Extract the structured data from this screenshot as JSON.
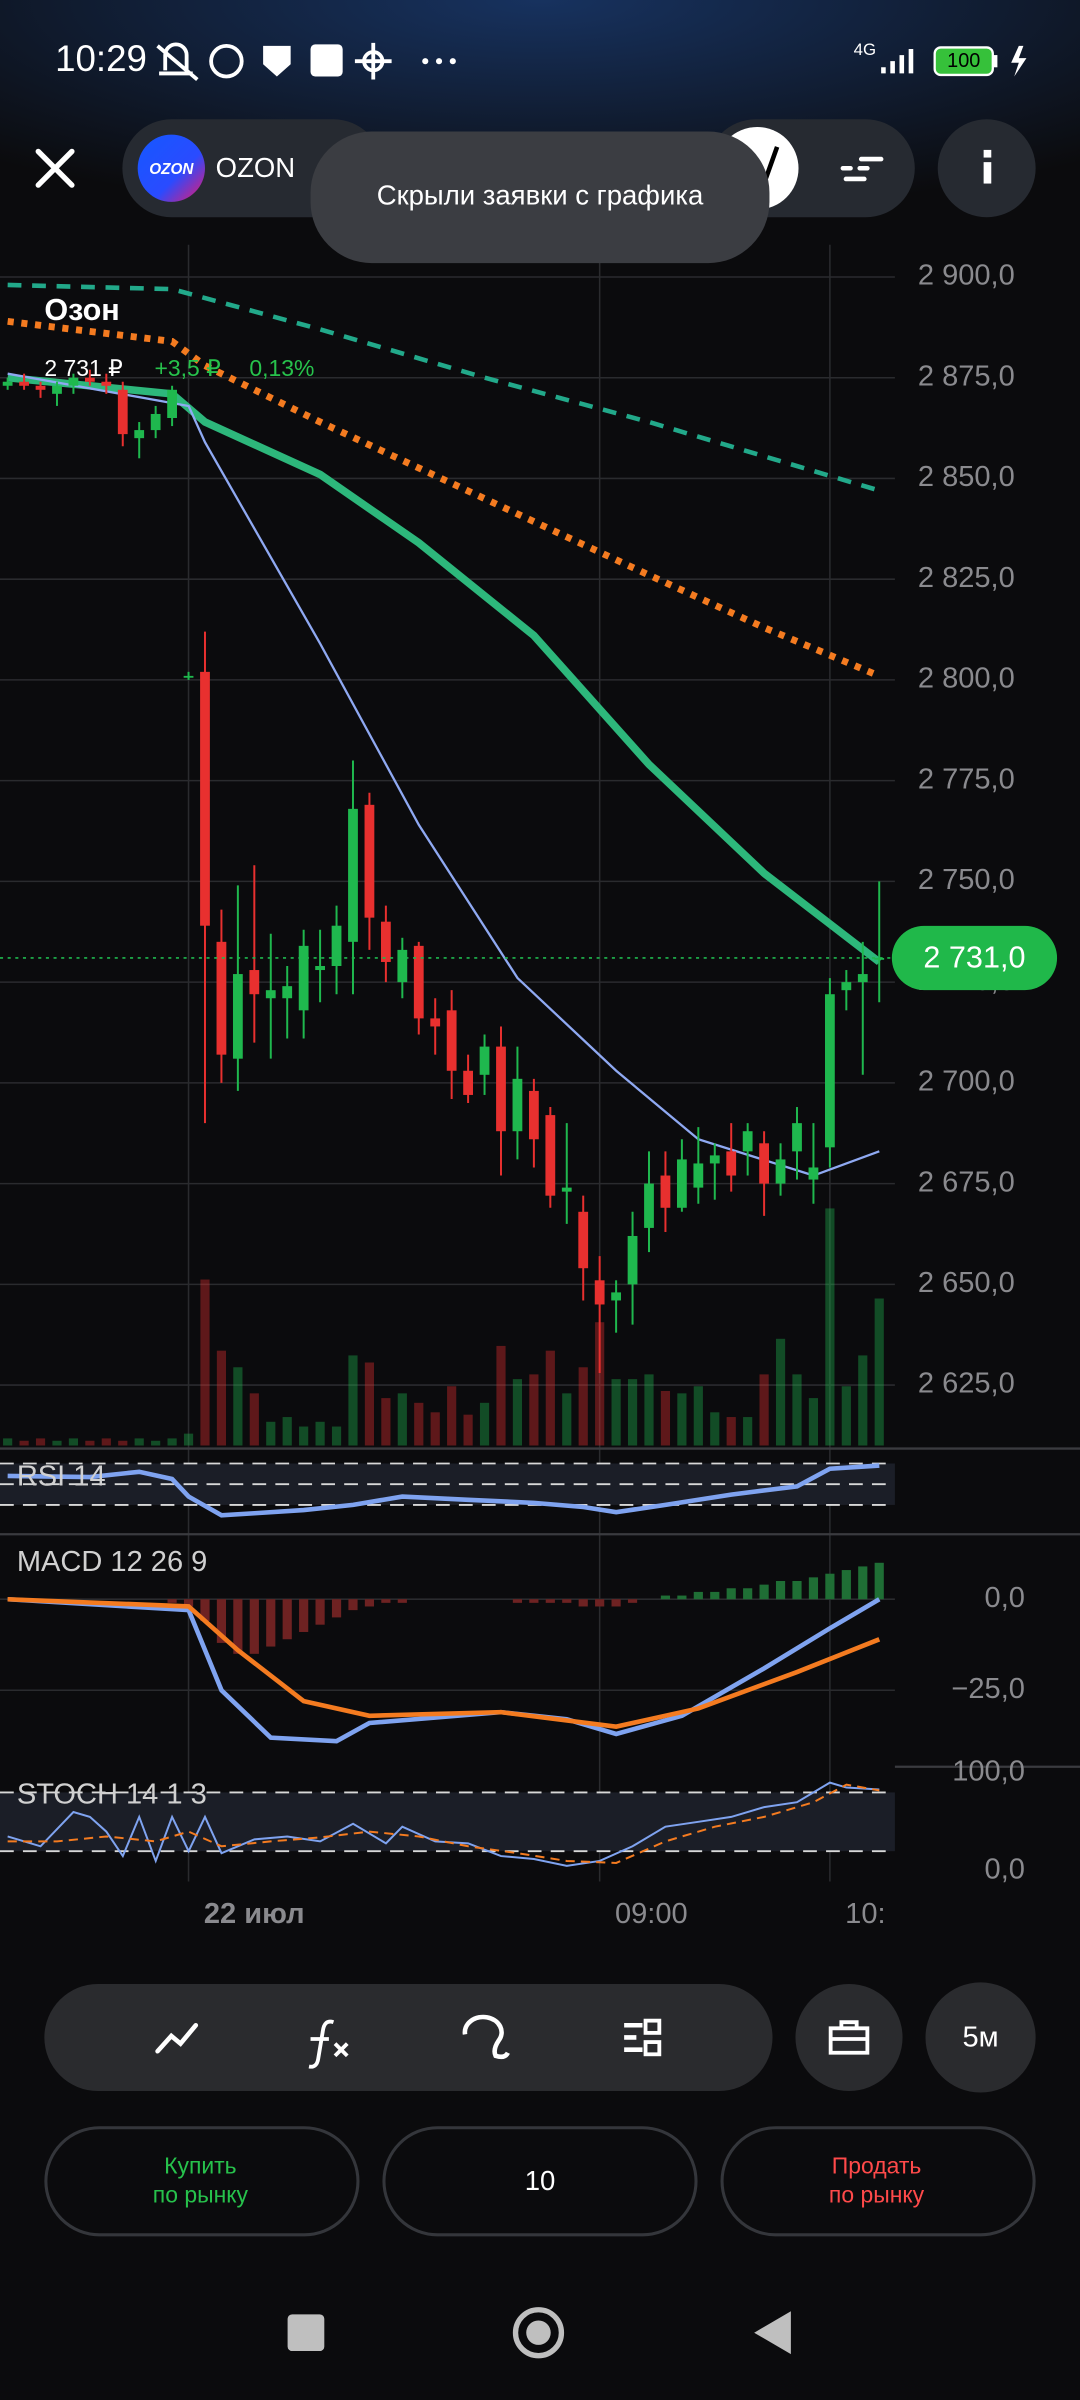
{
  "status_bar": {
    "time": "10:29",
    "network": "4G",
    "battery": "100"
  },
  "header": {
    "logo": "OZON",
    "ticker": "OZON",
    "toast": "Скрыли заявки с графика"
  },
  "chart_data": {
    "type": "candlestick",
    "title": "Озон",
    "last_price_label": "2 731 ₽",
    "change": "+3,5 ₽",
    "change_percent": "0,13%",
    "current_price": {
      "value": 2731,
      "label": "2 731,0"
    },
    "ylim": [
      2610,
      2908
    ],
    "yticks": [
      {
        "value": 2900,
        "label": "2 900,0"
      },
      {
        "value": 2875,
        "label": "2 875,0"
      },
      {
        "value": 2850,
        "label": "2 850,0"
      },
      {
        "value": 2825,
        "label": "2 825,0"
      },
      {
        "value": 2800,
        "label": "2 800,0"
      },
      {
        "value": 2775,
        "label": "2 775,0"
      },
      {
        "value": 2750,
        "label": "2 750,0"
      },
      {
        "value": 2725,
        "label": "2 725,0"
      },
      {
        "value": 2700,
        "label": "2 700,0"
      },
      {
        "value": 2675,
        "label": "2 675,0"
      },
      {
        "value": 2650,
        "label": "2 650,0"
      },
      {
        "value": 2625,
        "label": "2 625,0"
      }
    ],
    "grid": true,
    "up_color": "#1fb84e",
    "down_color": "#e8302f",
    "open": [
      2873,
      2874,
      2873,
      2871,
      2873,
      2875,
      2874,
      2872,
      2860,
      2862,
      2865,
      2801,
      2802,
      2735,
      2706,
      2728,
      2721,
      2721,
      2718,
      2728,
      2729,
      2735,
      2769,
      2740,
      2725,
      2734,
      2716,
      2718,
      2703,
      2702,
      2709,
      2688,
      2698,
      2692,
      2673,
      2668,
      2651,
      2646,
      2650,
      2664,
      2677,
      2669,
      2674,
      2680,
      2683,
      2683,
      2685,
      2675,
      2683,
      2676,
      2684,
      2723,
      2725,
      2731
    ],
    "high": [
      2875,
      2876,
      2874,
      2874,
      2876,
      2877,
      2876,
      2874,
      2864,
      2868,
      2873,
      2802,
      2812,
      2743,
      2749,
      2754,
      2737,
      2729,
      2738,
      2738,
      2744,
      2780,
      2772,
      2744,
      2736,
      2735,
      2721,
      2723,
      2707,
      2712,
      2714,
      2709,
      2701,
      2694,
      2690,
      2672,
      2657,
      2651,
      2668,
      2683,
      2683,
      2686,
      2689,
      2685,
      2690,
      2690,
      2688,
      2685,
      2694,
      2690,
      2726,
      2728,
      2735,
      2750
    ],
    "low": [
      2872,
      2872,
      2870,
      2868,
      2871,
      2873,
      2871,
      2858,
      2855,
      2860,
      2863,
      2800,
      2690,
      2700,
      2698,
      2710,
      2706,
      2711,
      2711,
      2720,
      2722,
      2722,
      2733,
      2725,
      2721,
      2712,
      2707,
      2696,
      2695,
      2697,
      2677,
      2681,
      2679,
      2669,
      2665,
      2646,
      2628,
      2638,
      2640,
      2658,
      2663,
      2668,
      2670,
      2671,
      2673,
      2677,
      2667,
      2672,
      2676,
      2670,
      2679,
      2718,
      2702,
      2720
    ],
    "close": [
      2874,
      2873,
      2872,
      2873,
      2875,
      2874,
      2873,
      2861,
      2862,
      2866,
      2872,
      2801,
      2739,
      2707,
      2727,
      2722,
      2723,
      2724,
      2734,
      2729,
      2739,
      2768,
      2741,
      2730,
      2733,
      2716,
      2714,
      2703,
      2697,
      2709,
      2688,
      2701,
      2686,
      2672,
      2674,
      2654,
      2645,
      2648,
      2662,
      2675,
      2669,
      2681,
      2680,
      2682,
      2677,
      2688,
      2675,
      2681,
      2690,
      2679,
      2722,
      2725,
      2727,
      2731
    ],
    "volume": [
      3,
      2,
      3,
      2,
      3,
      2,
      3,
      2,
      3,
      2,
      3,
      5,
      70,
      40,
      33,
      22,
      10,
      12,
      8,
      10,
      8,
      38,
      35,
      20,
      22,
      18,
      14,
      25,
      13,
      18,
      42,
      28,
      30,
      40,
      22,
      33,
      52,
      28,
      28,
      30,
      23,
      22,
      25,
      14,
      12,
      12,
      30,
      45,
      30,
      20,
      100,
      25,
      38,
      62
    ],
    "moving_averages": [
      {
        "color": "#22a98a",
        "style": "dashed",
        "x": [
          0,
          10,
          19,
          29,
          39,
          53
        ],
        "values": [
          2898,
          2897,
          2887,
          2875,
          2864,
          2847
        ]
      },
      {
        "color": "#f47b20",
        "style": "dotted",
        "x": [
          0,
          10,
          12,
          19,
          29,
          39,
          46,
          53
        ],
        "values": [
          2889,
          2884,
          2878,
          2864,
          2845,
          2826,
          2813,
          2801
        ]
      },
      {
        "color": "#2db77b",
        "style": "thick",
        "x": [
          0,
          10,
          12,
          19,
          25,
          32,
          39,
          46,
          53
        ],
        "values": [
          2875,
          2871,
          2864,
          2851,
          2834,
          2811,
          2779,
          2752,
          2730
        ]
      },
      {
        "color": "#8fa9f2",
        "style": "thin",
        "x": [
          0,
          11,
          12,
          19,
          25,
          31,
          37,
          42,
          49,
          53
        ],
        "values": [
          2876,
          2868,
          2859,
          2809,
          2764,
          2726,
          2703,
          2686,
          2677,
          2683
        ]
      }
    ],
    "x_labels": [
      {
        "index": 11,
        "label": "22 июл"
      },
      {
        "index": 36,
        "label": "09:00"
      },
      {
        "index": 50,
        "label": "10:"
      }
    ],
    "indicators": {
      "rsi": {
        "label": "RSI 14",
        "ylim": [
          15,
          80
        ],
        "levels": [
          30,
          50,
          70
        ],
        "series": [
          {
            "color": "#7fa3f0",
            "x": [
              0,
              5,
              8,
              10,
              11,
              13,
              15,
              18,
              21,
              24,
              28,
              32,
              35,
              37,
              40,
              44,
              48,
              50,
              53
            ],
            "values": [
              58,
              57,
              62,
              55,
              38,
              20,
              22,
              25,
              30,
              38,
              35,
              32,
              28,
              23,
              30,
              40,
              48,
              65,
              68
            ]
          }
        ]
      },
      "macd": {
        "label": "MACD 12 26 9",
        "ylim": [
          -46,
          17
        ],
        "yticks": [
          {
            "value": 0,
            "label": "0,0"
          },
          {
            "value": -25,
            "label": "−25,0"
          }
        ],
        "histogram": [
          0,
          0,
          0,
          0,
          0,
          0,
          0,
          0,
          0,
          0,
          -1,
          -2,
          -6,
          -12,
          -15,
          -15,
          -13,
          -11,
          -9,
          -7,
          -5,
          -3,
          -2,
          -1,
          -1,
          0,
          0,
          0,
          0,
          0,
          0,
          -1,
          -1,
          -1,
          -1,
          -2,
          -2,
          -2,
          -1,
          0,
          1,
          1,
          2,
          2,
          3,
          3,
          4,
          5,
          5,
          6,
          7,
          8,
          9,
          10
        ],
        "series": [
          {
            "color": "#7fa3f0",
            "x": [
              0,
              11,
              13,
              16,
              20,
              22,
              30,
              34,
              37,
              41,
              46,
              50,
              53
            ],
            "values": [
              0,
              -3,
              -25,
              -38,
              -39,
              -34,
              -31,
              -33,
              -37,
              -32,
              -19,
              -8,
              0
            ]
          },
          {
            "color": "#f47b20",
            "x": [
              0,
              11,
              14,
              18,
              22,
              30,
              37,
              42,
              48,
              53
            ],
            "values": [
              0,
              -2,
              -14,
              -28,
              -32,
              -31,
              -35,
              -30,
              -20,
              -11
            ]
          }
        ]
      },
      "stoch": {
        "label": "STOCH 14 1 3",
        "ylim": [
          0,
          100
        ],
        "yticks": [
          {
            "value": 100,
            "label": "100,0"
          },
          {
            "value": 0,
            "label": "0,0"
          }
        ],
        "levels": [
          20,
          80
        ],
        "series": [
          {
            "color": "#7fa3f0",
            "x": [
              0,
              2,
              4,
              5,
              6,
              7,
              8,
              9,
              10,
              11,
              12,
              13,
              15,
              17,
              19,
              21,
              23,
              24,
              26,
              28,
              30,
              32,
              34,
              36,
              38,
              40,
              42,
              44,
              46,
              48,
              50,
              51,
              53
            ],
            "values": [
              35,
              25,
              60,
              55,
              40,
              15,
              55,
              10,
              55,
              20,
              55,
              18,
              32,
              35,
              30,
              48,
              28,
              45,
              30,
              28,
              15,
              12,
              5,
              10,
              25,
              45,
              50,
              55,
              65,
              70,
              90,
              85,
              83
            ]
          },
          {
            "color": "#f47b20",
            "x": [
              0,
              3,
              6,
              9,
              11,
              13,
              16,
              19,
              22,
              25,
              28,
              31,
              34,
              37,
              40,
              43,
              46,
              49,
              51,
              53
            ],
            "values": [
              30,
              30,
              35,
              30,
              40,
              25,
              30,
              34,
              40,
              35,
              25,
              18,
              10,
              8,
              30,
              45,
              55,
              70,
              88,
              82
            ]
          }
        ]
      }
    }
  },
  "toolbar": {
    "interval": "5м"
  },
  "order": {
    "buy": [
      "Купить",
      "по рынку"
    ],
    "quantity": 10,
    "sell": [
      "Продать",
      "по рынку"
    ]
  }
}
